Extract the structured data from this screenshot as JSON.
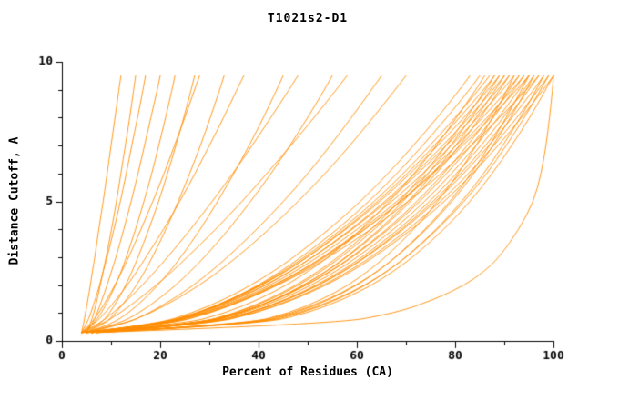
{
  "chart_data": {
    "type": "line",
    "title": "T1021s2-D1",
    "xlabel": "Percent of Residues (CA)",
    "ylabel": "Distance Cutoff, A",
    "xlim": [
      0,
      100
    ],
    "ylim": [
      0,
      10
    ],
    "xticks": [
      0,
      20,
      40,
      60,
      80,
      100
    ],
    "xticks_minor": [
      10,
      30,
      50,
      70,
      90
    ],
    "yticks": [
      0,
      5,
      10
    ],
    "yticks_minor": [
      1,
      2,
      3,
      4,
      6,
      7,
      8,
      9
    ],
    "grid": false,
    "legend": "none",
    "line_color": "#ff8c00",
    "axis_color": "#000000",
    "y_grid": [
      0.3,
      0.6,
      1,
      1.5,
      2,
      2.5,
      3,
      4,
      5,
      6,
      7,
      8,
      9,
      9.5
    ],
    "series": [
      {
        "x": [
          4,
          4.4,
          4.8,
          5.3,
          5.8,
          6.2,
          6.7,
          7.5,
          8.4,
          9.2,
          10,
          10.8,
          11.6,
          12
        ]
      },
      {
        "x": [
          5,
          5.8,
          6.5,
          7.2,
          7.8,
          8.4,
          9,
          10.1,
          11.1,
          12,
          12.9,
          13.8,
          14.6,
          15
        ]
      },
      {
        "x": [
          4,
          5,
          5.9,
          6.8,
          7.7,
          8.4,
          9.2,
          10.6,
          11.9,
          13.1,
          14.2,
          15.4,
          16.5,
          17
        ]
      },
      {
        "x": [
          5,
          6.2,
          7.2,
          8.2,
          9.2,
          10.1,
          11,
          12.6,
          14.1,
          15.5,
          16.8,
          18.1,
          19.4,
          20
        ]
      },
      {
        "x": [
          4,
          6.4,
          8,
          9.6,
          10.9,
          12.1,
          13.1,
          15,
          16.7,
          18.3,
          19.7,
          21.1,
          22.4,
          23
        ]
      },
      {
        "x": [
          5,
          7.8,
          9.7,
          11.5,
          13,
          14.3,
          15.5,
          17.7,
          19.7,
          21.5,
          23.2,
          24.8,
          26.3,
          27
        ]
      },
      {
        "x": [
          4,
          5.8,
          7.5,
          9.2,
          10.8,
          12.2,
          13.6,
          16.1,
          18.5,
          20.8,
          22.9,
          25,
          27,
          28
        ]
      },
      {
        "x": [
          5,
          8.6,
          11,
          13.2,
          15.2,
          16.9,
          18.4,
          21.2,
          23.7,
          26,
          28.2,
          30.2,
          32.1,
          33
        ]
      },
      {
        "x": [
          4,
          6.5,
          8.8,
          11.1,
          13.3,
          15.3,
          17.1,
          20.7,
          24,
          27.1,
          30,
          32.9,
          35.6,
          37
        ]
      },
      {
        "x": [
          5,
          10.1,
          13.5,
          16.8,
          19.5,
          22,
          24.2,
          28.2,
          31.7,
          35,
          38.1,
          41,
          43.7,
          45
        ]
      },
      {
        "x": [
          4,
          7.4,
          10.4,
          13.5,
          16.4,
          19,
          21.5,
          26.2,
          30.6,
          34.8,
          38.7,
          42.5,
          46.2,
          48
        ]
      },
      {
        "x": [
          5,
          11.4,
          15.7,
          19.7,
          23.2,
          26.2,
          29,
          34,
          38.4,
          42.6,
          46.4,
          50,
          53.4,
          55
        ]
      },
      {
        "x": [
          4,
          8.2,
          11.8,
          15.7,
          19.2,
          22.5,
          25.5,
          31.3,
          36.7,
          41.7,
          46.6,
          51.3,
          55.8,
          58
        ]
      },
      {
        "x": [
          5,
          12.7,
          17.8,
          22.6,
          26.8,
          30.4,
          33.7,
          39.7,
          45.1,
          50.1,
          54.6,
          58.9,
          63,
          65
        ]
      },
      {
        "x": [
          4,
          12.4,
          18.1,
          23.4,
          28,
          32,
          35.6,
          42.2,
          48.1,
          53.6,
          58.6,
          63.3,
          67.8,
          70
        ]
      },
      {
        "x": [
          5,
          19.1,
          26.5,
          33.2,
          38.5,
          43.1,
          47.2,
          54.4,
          60.8,
          66.4,
          71.5,
          76.4,
          80.9,
          83
        ]
      },
      {
        "x": [
          6,
          20.3,
          27.8,
          34.5,
          40,
          44.6,
          48.7,
          56.1,
          62.5,
          68.2,
          73.4,
          78.3,
          82.9,
          85
        ]
      },
      {
        "x": [
          4,
          24.8,
          33.3,
          40.2,
          45.7,
          50.2,
          54.2,
          61,
          66.7,
          71.7,
          76.2,
          80.3,
          84.2,
          86
        ]
      },
      {
        "x": [
          5,
          19.8,
          27.6,
          34.6,
          40.3,
          45.1,
          49.4,
          57,
          63.6,
          69.5,
          74.9,
          80,
          84.8,
          87
        ]
      },
      {
        "x": [
          6,
          26.8,
          35.3,
          42.2,
          47.7,
          52.2,
          56.2,
          63,
          68.7,
          73.7,
          78.2,
          82.3,
          86.2,
          88
        ]
      },
      {
        "x": [
          5,
          20,
          27.9,
          35,
          40.7,
          45.6,
          49.9,
          57.6,
          64.3,
          70.3,
          75.8,
          80.9,
          85.8,
          88
        ]
      },
      {
        "x": [
          4,
          19.4,
          27.5,
          34.7,
          40.6,
          45.6,
          50,
          57.9,
          64.8,
          70.9,
          76.5,
          81.8,
          86.7,
          89
        ]
      },
      {
        "x": [
          6,
          27.1,
          35.6,
          42.7,
          48.2,
          52.8,
          56.8,
          63.7,
          69.5,
          74.6,
          79.1,
          83.3,
          87.2,
          89
        ]
      },
      {
        "x": [
          5,
          20.4,
          28.5,
          35.7,
          41.6,
          46.6,
          51,
          58.9,
          65.8,
          71.9,
          77.5,
          82.8,
          87.7,
          90
        ]
      },
      {
        "x": [
          7,
          28.1,
          36.6,
          43.7,
          49.2,
          53.8,
          57.8,
          64.7,
          70.5,
          75.6,
          80.1,
          84.3,
          88.2,
          90
        ]
      },
      {
        "x": [
          4,
          19.7,
          28,
          35.4,
          41.4,
          46.5,
          51.1,
          59.2,
          66.2,
          72.5,
          78.2,
          83.6,
          88.7,
          91
        ]
      },
      {
        "x": [
          6,
          27.6,
          36.3,
          43.6,
          49.3,
          53.9,
          58,
          65.1,
          71,
          76.2,
          80.9,
          85.1,
          89.1,
          91
        ]
      },
      {
        "x": [
          5,
          20.7,
          29,
          36.4,
          42.4,
          47.5,
          52.1,
          60.2,
          67.2,
          73.5,
          79.2,
          84.6,
          89.7,
          92
        ]
      },
      {
        "x": [
          7,
          37.4,
          46.3,
          53.1,
          58.3,
          62.3,
          65.8,
          71.7,
          76.5,
          80.7,
          84.3,
          87.6,
          90.6,
          92
        ]
      },
      {
        "x": [
          5,
          27.4,
          36.4,
          43.9,
          49.8,
          54.6,
          58.9,
          66.2,
          72.3,
          77.7,
          82.5,
          86.9,
          91.1,
          93
        ]
      },
      {
        "x": [
          6,
          21.7,
          30,
          37.4,
          43.4,
          48.5,
          53.1,
          61.2,
          68.2,
          74.5,
          80.2,
          85.6,
          90.7,
          93
        ]
      },
      {
        "x": [
          4,
          26.9,
          36.1,
          43.8,
          49.8,
          54.8,
          59.1,
          66.6,
          72.9,
          78.3,
          83.3,
          87.8,
          92,
          94
        ]
      },
      {
        "x": [
          6,
          21.9,
          30.3,
          37.8,
          43.8,
          49,
          53.6,
          61.8,
          68.9,
          75.3,
          81.1,
          86.5,
          91.6,
          94
        ]
      },
      {
        "x": [
          5,
          27.9,
          37.1,
          44.8,
          50.8,
          55.8,
          60.1,
          67.6,
          73.9,
          79.3,
          84.3,
          88.8,
          93,
          95
        ]
      },
      {
        "x": [
          7,
          38.5,
          47.7,
          54.7,
          60.1,
          64.3,
          67.9,
          74,
          79,
          83.3,
          87,
          90.4,
          93.5,
          95
        ]
      },
      {
        "x": [
          4,
          20.5,
          29.1,
          36.9,
          43.1,
          48.5,
          53.2,
          61.7,
          69.1,
          75.6,
          81.6,
          87.3,
          92.5,
          95
        ]
      },
      {
        "x": [
          6,
          28.9,
          38.1,
          45.8,
          51.8,
          56.8,
          61.1,
          68.6,
          74.9,
          80.3,
          85.3,
          89.8,
          94,
          96
        ]
      },
      {
        "x": [
          5,
          37.6,
          47,
          54.3,
          59.9,
          64.2,
          68,
          74.3,
          79.4,
          83.9,
          87.7,
          91.3,
          94.5,
          96
        ]
      },
      {
        "x": [
          6,
          29.1,
          38.5,
          46.2,
          52.3,
          57.3,
          61.7,
          69.2,
          75.6,
          81.2,
          86.2,
          90.7,
          95,
          97
        ]
      },
      {
        "x": [
          4,
          20.8,
          29.7,
          37.6,
          44,
          49.5,
          54.3,
          63,
          70.5,
          77.2,
          83.3,
          89.1,
          94.5,
          97
        ]
      },
      {
        "x": [
          5,
          28.6,
          38.2,
          46.1,
          52.3,
          57.4,
          61.9,
          69.6,
          76.1,
          81.8,
          86.9,
          91.6,
          96,
          98
        ]
      },
      {
        "x": [
          7,
          39.6,
          49,
          56.3,
          61.9,
          66.2,
          70,
          76.3,
          81.4,
          85.9,
          89.7,
          93.3,
          96.5,
          98
        ]
      },
      {
        "x": [
          6,
          29.6,
          39.2,
          47.1,
          53.3,
          58.4,
          62.9,
          70.6,
          77.1,
          82.8,
          87.9,
          92.6,
          96.9,
          99
        ]
      },
      {
        "x": [
          5,
          38.7,
          48.4,
          55.9,
          61.7,
          66.2,
          70.1,
          76.5,
          81.9,
          86.5,
          90.4,
          94.1,
          97.4,
          99
        ]
      },
      {
        "x": [
          6,
          29.9,
          39.6,
          47.5,
          53.8,
          59,
          63.5,
          71.3,
          77.9,
          83.6,
          88.8,
          93.5,
          97.9,
          100
        ]
      },
      {
        "x": [
          7,
          40.3,
          50,
          57.4,
          63.1,
          67.5,
          71.4,
          77.8,
          83.1,
          87.6,
          91.5,
          95.2,
          98.4,
          100
        ]
      },
      {
        "x": [
          7,
          55,
          68,
          76,
          82,
          86,
          89,
          93,
          96,
          97.5,
          98.5,
          99.2,
          99.8,
          100
        ]
      }
    ]
  }
}
